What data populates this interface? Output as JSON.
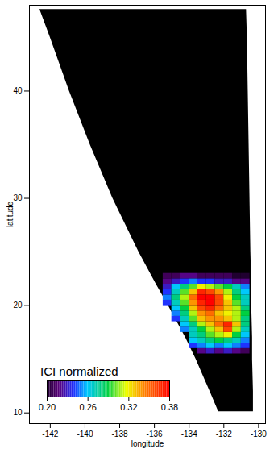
{
  "chart_data": {
    "type": "heatmap",
    "xlabel": "longitude",
    "ylabel": "latitude",
    "xlim": [
      -143.2,
      -129.6
    ],
    "ylim": [
      9,
      48
    ],
    "xticks": [
      -142,
      -140,
      -138,
      -136,
      -134,
      -132,
      -130
    ],
    "yticks": [
      10,
      20,
      30,
      40
    ],
    "swath": {
      "lat": [
        10.1,
        12,
        15,
        17,
        20,
        22,
        25,
        30,
        35,
        40,
        45,
        47.6
      ],
      "lon_left": [
        -132.3,
        -132.8,
        -133.6,
        -134.2,
        -135.2,
        -135.9,
        -136.9,
        -138.4,
        -139.7,
        -140.9,
        -142.0,
        -142.6
      ],
      "lon_right": [
        -130.3,
        -130.3,
        -130.35,
        -130.35,
        -130.4,
        -130.4,
        -130.45,
        -130.5,
        -130.55,
        -130.6,
        -130.65,
        -130.7
      ]
    },
    "cells": {
      "x": [
        -135.25,
        -134.75,
        -134.25,
        -133.75,
        -133.25,
        -132.75,
        -132.25,
        -131.75,
        -131.25,
        -130.75
      ],
      "y": [
        15.75,
        16.25,
        16.75,
        17.25,
        17.75,
        18.25,
        18.75,
        19.25,
        19.75,
        20.25,
        20.75,
        21.25,
        21.75,
        22.25,
        22.75
      ],
      "values": [
        [
          null,
          null,
          null,
          null,
          0.22,
          0.23,
          0.22,
          0.23,
          0.22,
          0.21
        ],
        [
          null,
          null,
          null,
          0.24,
          0.25,
          0.26,
          0.25,
          0.26,
          0.25,
          0.24
        ],
        [
          null,
          null,
          null,
          0.26,
          0.27,
          0.28,
          0.29,
          0.28,
          0.27,
          0.25
        ],
        [
          null,
          null,
          null,
          0.27,
          0.28,
          0.3,
          0.31,
          0.32,
          0.29,
          0.26
        ],
        [
          null,
          null,
          0.25,
          0.27,
          0.29,
          0.31,
          0.33,
          0.36,
          0.31,
          0.27
        ],
        [
          null,
          null,
          0.26,
          0.28,
          0.31,
          0.33,
          0.35,
          0.37,
          0.33,
          0.28
        ],
        [
          null,
          0.24,
          0.27,
          0.3,
          0.33,
          0.34,
          0.34,
          0.33,
          0.31,
          0.28
        ],
        [
          null,
          0.25,
          0.28,
          0.31,
          0.34,
          0.35,
          0.33,
          0.32,
          0.31,
          0.29
        ],
        [
          null,
          0.26,
          0.29,
          0.33,
          0.36,
          0.37,
          0.35,
          0.33,
          0.31,
          0.28
        ],
        [
          0.24,
          0.27,
          0.3,
          0.34,
          0.37,
          0.38,
          0.36,
          0.33,
          0.3,
          0.27
        ],
        [
          0.25,
          0.28,
          0.31,
          0.35,
          0.38,
          0.38,
          0.36,
          0.32,
          0.29,
          0.27
        ],
        [
          0.24,
          0.27,
          0.3,
          0.33,
          0.37,
          0.36,
          0.34,
          0.31,
          0.28,
          0.26
        ],
        [
          0.23,
          0.26,
          0.28,
          0.3,
          0.32,
          0.31,
          0.3,
          0.29,
          0.27,
          0.25
        ],
        [
          0.22,
          0.23,
          0.24,
          0.25,
          0.24,
          0.24,
          0.23,
          0.23,
          0.22,
          0.22
        ],
        [
          0.21,
          0.21,
          0.22,
          0.22,
          0.21,
          0.21,
          0.21,
          0.21,
          0.2,
          0.2
        ]
      ]
    },
    "colorbar": {
      "title": "ICI normalized",
      "range": [
        0.2,
        0.38
      ],
      "ticks": [
        {
          "value": 0.2,
          "label": "0.20"
        },
        0.26,
        0.32,
        0.38
      ]
    }
  }
}
